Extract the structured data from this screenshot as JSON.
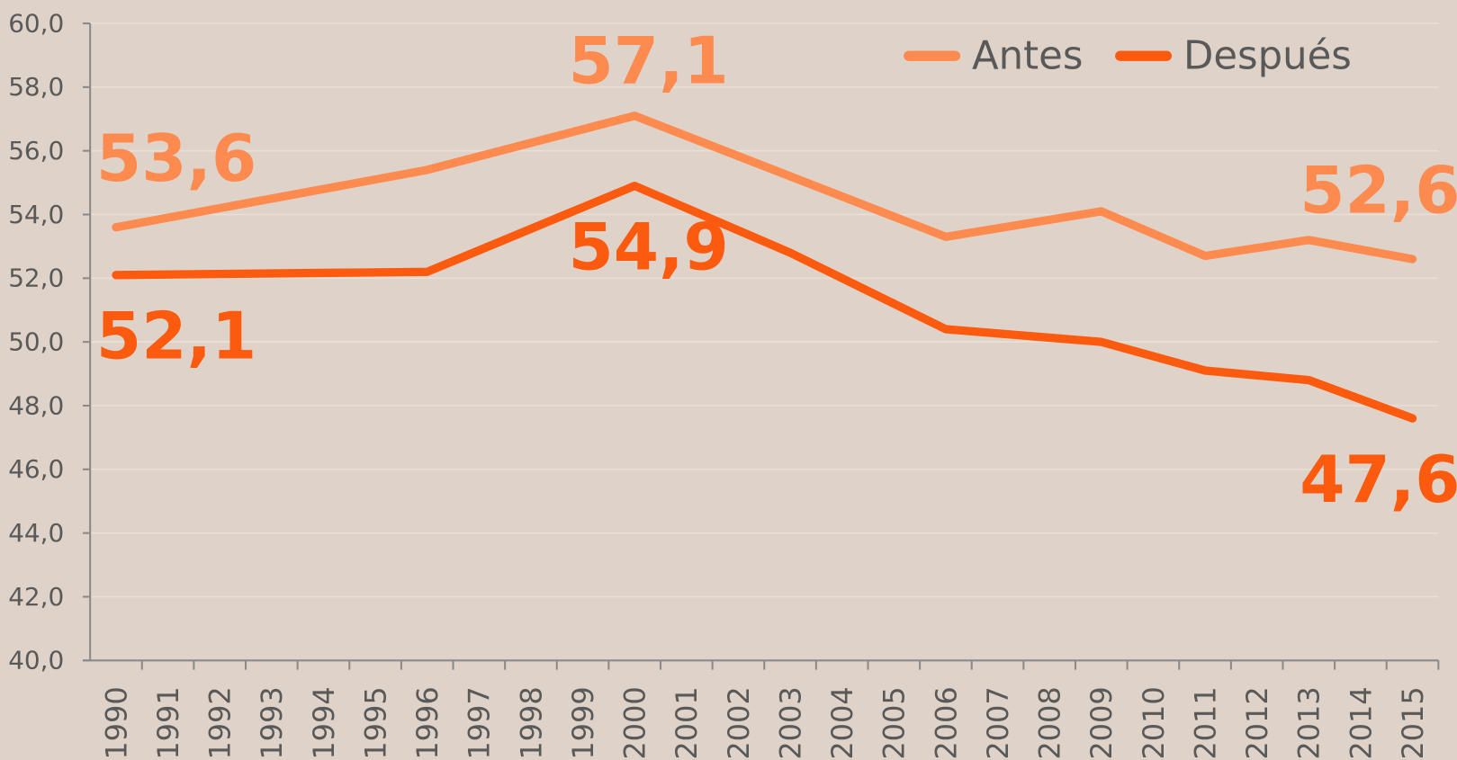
{
  "chart_data": {
    "type": "line",
    "x": [
      1990,
      1996,
      2000,
      2003,
      2006,
      2009,
      2011,
      2013,
      2015
    ],
    "series": [
      {
        "name": "Antes",
        "color": "#fd8a4f",
        "values": [
          53.6,
          55.4,
          57.1,
          55.2,
          53.3,
          54.1,
          52.7,
          53.2,
          52.6
        ],
        "value_labels": [
          "53,6",
          null,
          "57,1",
          null,
          null,
          null,
          null,
          null,
          "52,6"
        ]
      },
      {
        "name": "Después",
        "color": "#fc5a0e",
        "values": [
          52.1,
          52.2,
          54.9,
          52.8,
          50.4,
          50.0,
          49.1,
          48.8,
          47.6
        ],
        "value_labels": [
          "52,1",
          null,
          "54,9",
          null,
          null,
          null,
          null,
          null,
          "47,6"
        ]
      }
    ],
    "xlim": [
      1989.5,
      2015.5
    ],
    "xticks": [
      1990,
      1991,
      1992,
      1993,
      1994,
      1995,
      1996,
      1997,
      1998,
      1999,
      2000,
      2001,
      2002,
      2003,
      2004,
      2005,
      2006,
      2007,
      2008,
      2009,
      2010,
      2011,
      2012,
      2013,
      2014,
      2015
    ],
    "ylim": [
      40,
      60
    ],
    "yticks": [
      {
        "value": 40,
        "label": "40,0"
      },
      {
        "value": 42,
        "label": "42,0"
      },
      {
        "value": 44,
        "label": "44,0"
      },
      {
        "value": 46,
        "label": "46,0"
      },
      {
        "value": 48,
        "label": "48,0"
      },
      {
        "value": 50,
        "label": "50,0"
      },
      {
        "value": 52,
        "label": "52,0"
      },
      {
        "value": 54,
        "label": "54,0"
      },
      {
        "value": 56,
        "label": "56,0"
      },
      {
        "value": 58,
        "label": "58,0"
      },
      {
        "value": 60,
        "label": "60,0"
      }
    ],
    "grid": true,
    "legend": "top-right"
  }
}
